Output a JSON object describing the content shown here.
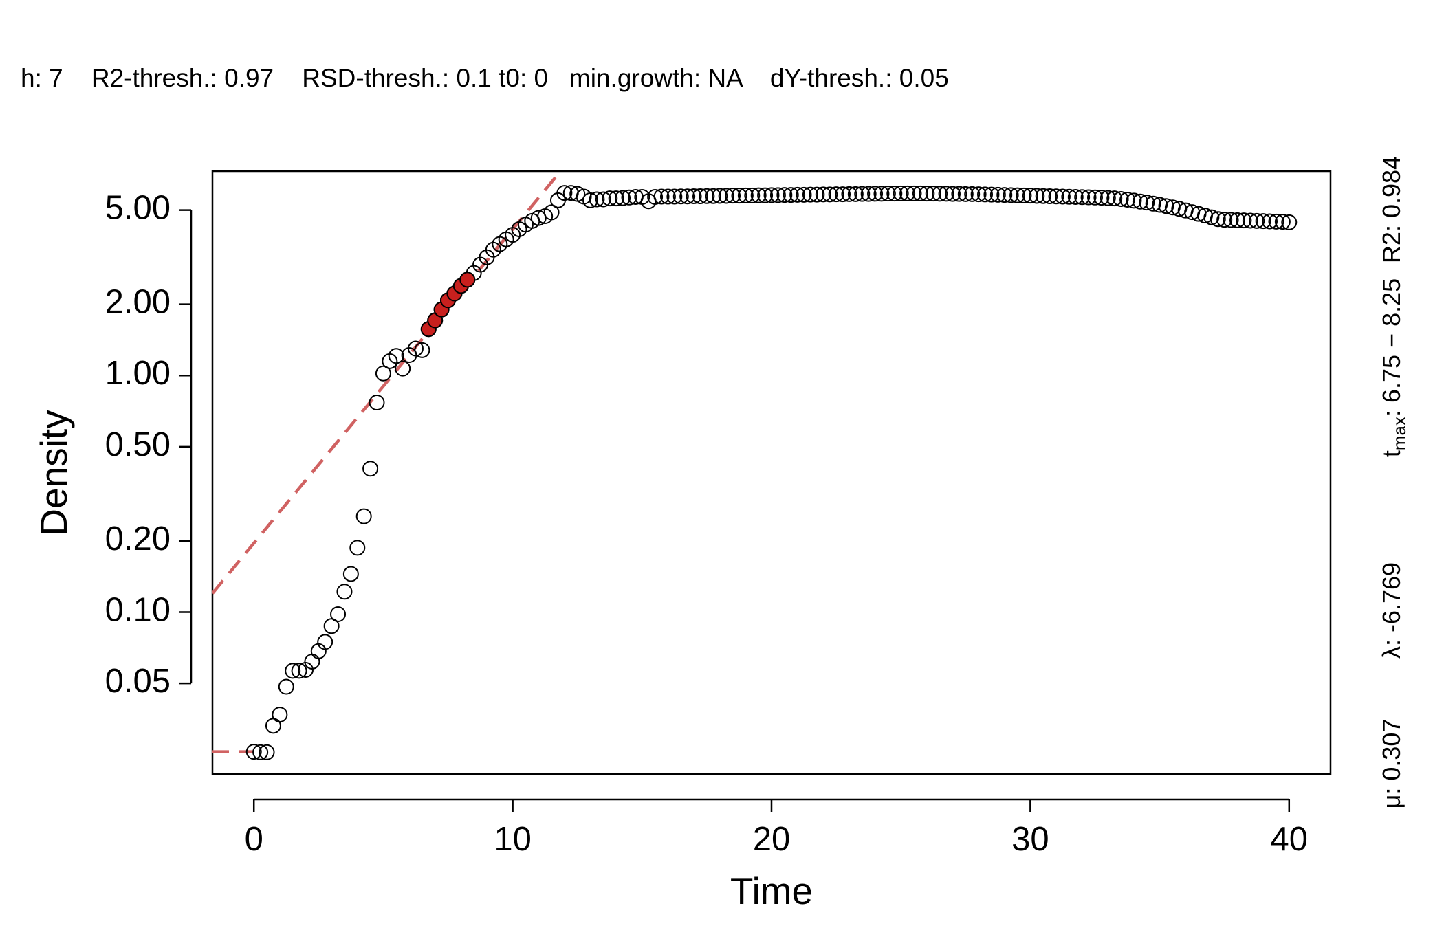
{
  "chart_data": {
    "type": "scatter",
    "subtitle": "h: 7    R2-thresh.: 0.97    RSD-thresh.: 0.1 t0: 0   min.growth: NA    dY-thresh.: 0.05",
    "xlabel": "Time",
    "ylabel": "Density",
    "log_y": true,
    "xlim": [
      -1.6,
      41.6
    ],
    "ylim": [
      0.0207,
      7.3
    ],
    "xticks": [
      0,
      10,
      20,
      30,
      40
    ],
    "yticks": [
      {
        "value": 0.05,
        "label": "0.05"
      },
      {
        "value": 0.1,
        "label": "0.10"
      },
      {
        "value": 0.2,
        "label": "0.20"
      },
      {
        "value": 0.5,
        "label": "0.50"
      },
      {
        "value": 1,
        "label": "1.00"
      },
      {
        "value": 2,
        "label": "2.00"
      },
      {
        "value": 5,
        "label": "5.00"
      }
    ],
    "series": [
      {
        "color": "#000000",
        "filled": false,
        "x": [
          0,
          0.25,
          0.5,
          0.75,
          1,
          1.25,
          1.5,
          1.75,
          2,
          2.25,
          2.5,
          2.75,
          3,
          3.25,
          3.5,
          3.75,
          4,
          4.25,
          4.5,
          4.75,
          5,
          5.25,
          5.5,
          5.75,
          6,
          6.25,
          6.5,
          6.75,
          7,
          7.25,
          7.5,
          7.75,
          8,
          8.25,
          8.5,
          8.75,
          9,
          9.25,
          9.5,
          9.75,
          10,
          10.25,
          10.5,
          10.75,
          11,
          11.25,
          11.5,
          11.75,
          12,
          12.25,
          12.5,
          12.75,
          13,
          13.25,
          13.5,
          13.75,
          14,
          14.25,
          14.5,
          14.75,
          15,
          15.25,
          15.5,
          15.75,
          16,
          16.25,
          16.5,
          16.75,
          17,
          17.25,
          17.5,
          17.75,
          18,
          18.25,
          18.5,
          18.75,
          19,
          19.25,
          19.5,
          19.75,
          20,
          20.25,
          20.5,
          20.75,
          21,
          21.25,
          21.5,
          21.75,
          22,
          22.25,
          22.5,
          22.75,
          23,
          23.25,
          23.5,
          23.75,
          24,
          24.25,
          24.5,
          24.75,
          25,
          25.25,
          25.5,
          25.75,
          26,
          26.25,
          26.5,
          26.75,
          27,
          27.25,
          27.5,
          27.75,
          28,
          28.25,
          28.5,
          28.75,
          29,
          29.25,
          29.5,
          29.75,
          30,
          30.25,
          30.5,
          30.75,
          31,
          31.25,
          31.5,
          31.75,
          32,
          32.25,
          32.5,
          32.75,
          33,
          33.25,
          33.5,
          33.75,
          34,
          34.25,
          34.5,
          34.75,
          35,
          35.25,
          35.5,
          35.75,
          36,
          36.25,
          36.5,
          36.75,
          37,
          37.25,
          37.5,
          37.75,
          38,
          38.25,
          38.5,
          38.75,
          39,
          39.25,
          39.5,
          39.75,
          40
        ],
        "values": [
          0.0257,
          0.0256,
          0.0256,
          0.0331,
          0.0369,
          0.0484,
          0.0565,
          0.0565,
          0.057,
          0.0618,
          0.0684,
          0.0748,
          0.0873,
          0.098,
          0.122,
          0.145,
          0.187,
          0.254,
          0.404,
          0.769,
          1.02,
          1.15,
          1.21,
          1.07,
          1.22,
          1.3,
          1.28,
          1.57,
          1.71,
          1.9,
          2.08,
          2.22,
          2.39,
          2.54,
          2.71,
          2.94,
          3.16,
          3.4,
          3.59,
          3.76,
          3.93,
          4.15,
          4.34,
          4.5,
          4.63,
          4.71,
          4.89,
          5.5,
          5.91,
          5.91,
          5.85,
          5.7,
          5.5,
          5.55,
          5.55,
          5.6,
          5.6,
          5.62,
          5.65,
          5.68,
          5.68,
          5.45,
          5.68,
          5.7,
          5.7,
          5.7,
          5.71,
          5.71,
          5.72,
          5.72,
          5.73,
          5.73,
          5.74,
          5.74,
          5.75,
          5.75,
          5.76,
          5.76,
          5.77,
          5.77,
          5.78,
          5.78,
          5.79,
          5.79,
          5.8,
          5.8,
          5.81,
          5.81,
          5.82,
          5.82,
          5.83,
          5.83,
          5.84,
          5.84,
          5.85,
          5.85,
          5.86,
          5.86,
          5.87,
          5.87,
          5.88,
          5.88,
          5.88,
          5.88,
          5.87,
          5.87,
          5.86,
          5.86,
          5.85,
          5.85,
          5.84,
          5.84,
          5.83,
          5.82,
          5.81,
          5.8,
          5.79,
          5.78,
          5.77,
          5.76,
          5.75,
          5.74,
          5.73,
          5.72,
          5.71,
          5.7,
          5.69,
          5.68,
          5.67,
          5.66,
          5.65,
          5.64,
          5.62,
          5.6,
          5.57,
          5.53,
          5.48,
          5.43,
          5.38,
          5.32,
          5.26,
          5.2,
          5.13,
          5.06,
          4.98,
          4.9,
          4.82,
          4.74,
          4.66,
          4.58,
          4.55,
          4.54,
          4.53,
          4.52,
          4.51,
          4.5,
          4.49,
          4.48,
          4.47,
          4.46,
          4.44
        ]
      },
      {
        "color": "#c8201e",
        "filled": true,
        "x": [
          6.75,
          7,
          7.25,
          7.5,
          7.75,
          8,
          8.25
        ],
        "values": [
          1.57,
          1.71,
          1.9,
          2.08,
          2.22,
          2.39,
          2.54
        ]
      }
    ],
    "lines": [
      {
        "color": "#d06262",
        "dashed": true,
        "x": [
          -1.6,
          11.85
        ],
        "values": [
          0.12,
          7.3
        ]
      },
      {
        "color": "#d06262",
        "dashed": true,
        "x": [
          -1.6,
          0
        ],
        "values": [
          0.0257,
          0.0257
        ]
      }
    ],
    "annotations": {
      "mu": "μ: 0.307",
      "lambda": "λ: -6.769",
      "tmax_symbol": "t",
      "tmax_subscript": "max",
      "tmax_range": ": 6.75 − 8.25",
      "r2": "R2: 0.984"
    }
  }
}
